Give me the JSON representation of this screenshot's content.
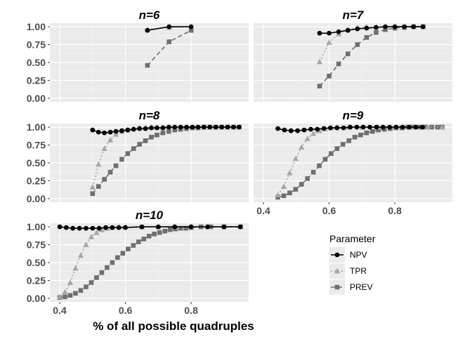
{
  "chart_data": {
    "type": "line",
    "xlabel": "% of all possible quadruples",
    "ylabel": "",
    "xlim": [
      0.37,
      0.975
    ],
    "ylim": [
      -0.05,
      1.05
    ],
    "x_ticks": [
      "0.4",
      "0.6",
      "0.8"
    ],
    "y_ticks": [
      "0.00",
      "0.25",
      "0.50",
      "0.75",
      "1.00"
    ],
    "grid": true,
    "legend": {
      "title": "Parameter",
      "placement": "bottom-right",
      "entries": [
        "NPV",
        "TPR",
        "PREV"
      ]
    },
    "series_style": {
      "NPV": {
        "color": "#000000",
        "marker": "circle",
        "dash": "solid"
      },
      "TPR": {
        "color": "#a6a6a6",
        "marker": "triangle",
        "dash": "dotted"
      },
      "PREV": {
        "color": "#6e6e6e",
        "marker": "square",
        "dash": "dashed"
      }
    },
    "facets": [
      {
        "title": "n=6",
        "series": [
          {
            "name": "NPV",
            "x": [
              0.667,
              0.733,
              0.8
            ],
            "y": [
              0.95,
              1.0,
              1.0
            ]
          },
          {
            "name": "TPR",
            "x": [
              0.667,
              0.733,
              0.8
            ],
            "y": [
              0.96,
              0.99,
              1.0
            ]
          },
          {
            "name": "PREV",
            "x": [
              0.667,
              0.733,
              0.8
            ],
            "y": [
              0.46,
              0.79,
              0.95
            ]
          }
        ]
      },
      {
        "title": "n=7",
        "series": [
          {
            "name": "NPV",
            "x": [
              0.571,
              0.6,
              0.629,
              0.657,
              0.686,
              0.714,
              0.743,
              0.771,
              0.8,
              0.829,
              0.857,
              0.886
            ],
            "y": [
              0.91,
              0.91,
              0.93,
              0.95,
              0.97,
              0.98,
              0.99,
              1.0,
              1.0,
              1.0,
              1.0,
              1.0
            ]
          },
          {
            "name": "TPR",
            "x": [
              0.571,
              0.6,
              0.629,
              0.657,
              0.686,
              0.714,
              0.743,
              0.771,
              0.8,
              0.829,
              0.857,
              0.886
            ],
            "y": [
              0.51,
              0.78,
              0.9,
              0.96,
              0.99,
              1.0,
              1.0,
              1.0,
              1.0,
              1.0,
              1.0,
              1.0
            ]
          },
          {
            "name": "PREV",
            "x": [
              0.571,
              0.6,
              0.629,
              0.657,
              0.686,
              0.714,
              0.743,
              0.771,
              0.8,
              0.829,
              0.857,
              0.886
            ],
            "y": [
              0.17,
              0.31,
              0.48,
              0.62,
              0.75,
              0.85,
              0.92,
              0.96,
              0.98,
              0.99,
              1.0,
              1.0
            ]
          }
        ]
      },
      {
        "title": "n=8",
        "series": [
          {
            "name": "NPV",
            "x": [
              0.5,
              0.518,
              0.536,
              0.554,
              0.571,
              0.589,
              0.607,
              0.625,
              0.643,
              0.661,
              0.679,
              0.696,
              0.714,
              0.732,
              0.75,
              0.768,
              0.786,
              0.804,
              0.821,
              0.839,
              0.857,
              0.875,
              0.893,
              0.911,
              0.929,
              0.946
            ],
            "y": [
              0.96,
              0.93,
              0.92,
              0.93,
              0.94,
              0.95,
              0.96,
              0.97,
              0.98,
              0.98,
              0.99,
              0.99,
              0.99,
              1.0,
              1.0,
              1.0,
              1.0,
              1.0,
              1.0,
              1.0,
              1.0,
              1.0,
              1.0,
              1.0,
              1.0,
              1.0
            ]
          },
          {
            "name": "TPR",
            "x": [
              0.5,
              0.518,
              0.536,
              0.554,
              0.571,
              0.589,
              0.607,
              0.625,
              0.643,
              0.661,
              0.679,
              0.696,
              0.714,
              0.732,
              0.75,
              0.768,
              0.786,
              0.804,
              0.821,
              0.839,
              0.857,
              0.875,
              0.893,
              0.911,
              0.929,
              0.946
            ],
            "y": [
              0.16,
              0.48,
              0.7,
              0.82,
              0.9,
              0.94,
              0.96,
              0.98,
              0.99,
              0.99,
              1.0,
              1.0,
              1.0,
              1.0,
              1.0,
              1.0,
              1.0,
              1.0,
              1.0,
              1.0,
              1.0,
              1.0,
              1.0,
              1.0,
              1.0,
              1.0
            ]
          },
          {
            "name": "PREV",
            "x": [
              0.5,
              0.518,
              0.536,
              0.554,
              0.571,
              0.589,
              0.607,
              0.625,
              0.643,
              0.661,
              0.679,
              0.696,
              0.714,
              0.732,
              0.75,
              0.768,
              0.786,
              0.804,
              0.821,
              0.839,
              0.857,
              0.875,
              0.893,
              0.911,
              0.929,
              0.946
            ],
            "y": [
              0.07,
              0.17,
              0.27,
              0.37,
              0.46,
              0.55,
              0.63,
              0.7,
              0.76,
              0.81,
              0.86,
              0.89,
              0.92,
              0.94,
              0.96,
              0.97,
              0.98,
              0.99,
              0.99,
              1.0,
              1.0,
              1.0,
              1.0,
              1.0,
              1.0,
              1.0
            ]
          }
        ]
      },
      {
        "title": "n=9",
        "series": [
          {
            "name": "NPV",
            "x": [
              0.444,
              0.464,
              0.484,
              0.504,
              0.524,
              0.544,
              0.564,
              0.584,
              0.604,
              0.624,
              0.644,
              0.664,
              0.684,
              0.704,
              0.724,
              0.744,
              0.764,
              0.784,
              0.804,
              0.824,
              0.844,
              0.864,
              0.884
            ],
            "y": [
              0.98,
              0.96,
              0.95,
              0.95,
              0.96,
              0.97,
              0.97,
              0.98,
              0.99,
              0.99,
              0.99,
              1.0,
              1.0,
              1.0,
              1.0,
              1.0,
              1.0,
              1.0,
              1.0,
              1.0,
              1.0,
              1.0,
              1.0
            ]
          },
          {
            "name": "TPR",
            "x": [
              0.444,
              0.462,
              0.48,
              0.498,
              0.516,
              0.534,
              0.552,
              0.57,
              0.588,
              0.606,
              0.624,
              0.66,
              0.7,
              0.75,
              0.8,
              0.85,
              0.9,
              0.944
            ],
            "y": [
              0.05,
              0.17,
              0.36,
              0.56,
              0.72,
              0.84,
              0.91,
              0.95,
              0.98,
              0.99,
              1.0,
              1.0,
              1.0,
              1.0,
              1.0,
              1.0,
              1.0,
              1.0
            ]
          },
          {
            "name": "PREV",
            "x": [
              0.444,
              0.462,
              0.48,
              0.498,
              0.516,
              0.534,
              0.552,
              0.57,
              0.588,
              0.606,
              0.624,
              0.642,
              0.66,
              0.678,
              0.696,
              0.714,
              0.732,
              0.75,
              0.768,
              0.786,
              0.804,
              0.822,
              0.84,
              0.858,
              0.876,
              0.894,
              0.912,
              0.93,
              0.944
            ],
            "y": [
              0.02,
              0.04,
              0.08,
              0.13,
              0.2,
              0.28,
              0.37,
              0.46,
              0.55,
              0.63,
              0.7,
              0.76,
              0.81,
              0.86,
              0.89,
              0.92,
              0.94,
              0.96,
              0.97,
              0.98,
              0.99,
              0.99,
              1.0,
              1.0,
              1.0,
              1.0,
              1.0,
              1.0,
              1.0
            ]
          }
        ]
      },
      {
        "title": "n=10",
        "series": [
          {
            "name": "NPV",
            "x": [
              0.4,
              0.42,
              0.44,
              0.46,
              0.48,
              0.5,
              0.52,
              0.54,
              0.56,
              0.58,
              0.6,
              0.65,
              0.7,
              0.75,
              0.8,
              0.85,
              0.9,
              0.95
            ],
            "y": [
              1.0,
              0.99,
              0.98,
              0.98,
              0.98,
              0.98,
              0.98,
              0.99,
              0.99,
              0.99,
              0.99,
              1.0,
              1.0,
              1.0,
              1.0,
              1.0,
              1.0,
              1.0
            ]
          },
          {
            "name": "TPR",
            "x": [
              0.4,
              0.416,
              0.432,
              0.448,
              0.464,
              0.48,
              0.496,
              0.512,
              0.528,
              0.544,
              0.56,
              0.58,
              0.6,
              0.65,
              0.7,
              0.75,
              0.8,
              0.85,
              0.9,
              0.95
            ],
            "y": [
              0.02,
              0.09,
              0.22,
              0.42,
              0.6,
              0.75,
              0.86,
              0.92,
              0.96,
              0.98,
              0.99,
              1.0,
              1.0,
              1.0,
              1.0,
              1.0,
              1.0,
              1.0,
              1.0,
              1.0
            ]
          },
          {
            "name": "PREV",
            "x": [
              0.4,
              0.416,
              0.432,
              0.448,
              0.464,
              0.48,
              0.496,
              0.512,
              0.528,
              0.544,
              0.56,
              0.576,
              0.592,
              0.608,
              0.624,
              0.64,
              0.656,
              0.672,
              0.688,
              0.704,
              0.72,
              0.736,
              0.752,
              0.768,
              0.784,
              0.8,
              0.83,
              0.86,
              0.9,
              0.95
            ],
            "y": [
              0.01,
              0.02,
              0.04,
              0.07,
              0.11,
              0.16,
              0.22,
              0.29,
              0.36,
              0.43,
              0.5,
              0.57,
              0.63,
              0.69,
              0.74,
              0.79,
              0.83,
              0.87,
              0.9,
              0.92,
              0.94,
              0.96,
              0.97,
              0.98,
              0.98,
              0.99,
              1.0,
              1.0,
              1.0,
              1.0
            ]
          }
        ]
      }
    ]
  }
}
